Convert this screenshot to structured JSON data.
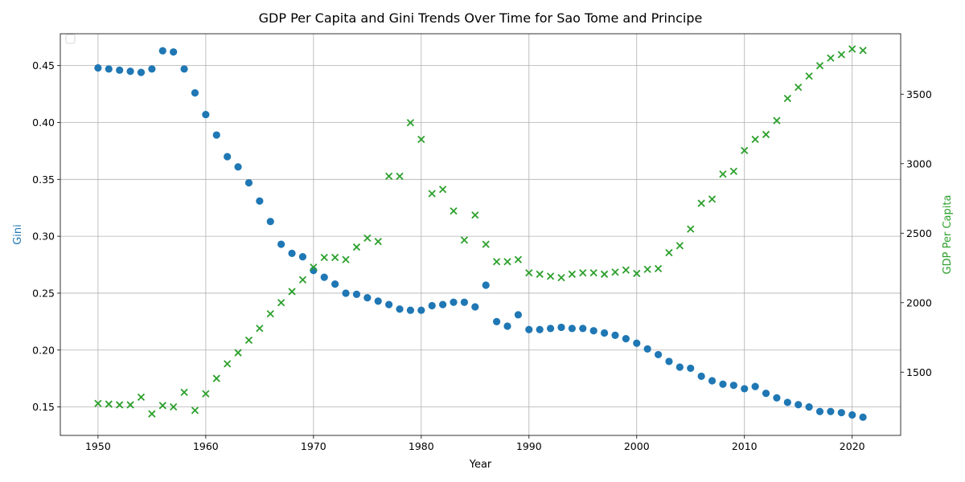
{
  "chart_data": {
    "type": "scatter",
    "title": "GDP Per Capita and Gini Trends Over Time for Sao Tome and Principe",
    "xlabel": "Year",
    "ylabel_left": "Gini",
    "ylabel_right": "GDP Per Capita",
    "xlim": [
      1946.5,
      2024.5
    ],
    "ylim_left": [
      0.125,
      0.478
    ],
    "ylim_right": [
      1045,
      3935
    ],
    "x_ticks": [
      1950,
      1960,
      1970,
      1980,
      1990,
      2000,
      2010,
      2020
    ],
    "y_ticks_left": [
      0.15,
      0.2,
      0.25,
      0.3,
      0.35,
      0.4,
      0.45
    ],
    "y_ticks_right": [
      1500,
      2000,
      2500,
      3000,
      3500
    ],
    "grid": true,
    "legend": "top-left (empty)",
    "series": [
      {
        "axis": "left",
        "marker": "circle",
        "color": "#1f77b4",
        "x": [
          1950,
          1951,
          1952,
          1953,
          1954,
          1955,
          1956,
          1957,
          1958,
          1959,
          1960,
          1961,
          1962,
          1963,
          1964,
          1965,
          1966,
          1967,
          1968,
          1969,
          1970,
          1971,
          1972,
          1973,
          1974,
          1975,
          1976,
          1977,
          1978,
          1979,
          1980,
          1981,
          1982,
          1983,
          1984,
          1985,
          1986,
          1987,
          1988,
          1989,
          1990,
          1991,
          1992,
          1993,
          1994,
          1995,
          1996,
          1997,
          1998,
          1999,
          2000,
          2001,
          2002,
          2003,
          2004,
          2005,
          2006,
          2007,
          2008,
          2009,
          2010,
          2011,
          2012,
          2013,
          2014,
          2015,
          2016,
          2017,
          2018,
          2019,
          2020,
          2021
        ],
        "values": [
          0.448,
          0.447,
          0.446,
          0.445,
          0.444,
          0.447,
          0.463,
          0.462,
          0.447,
          0.426,
          0.407,
          0.389,
          0.37,
          0.361,
          0.347,
          0.331,
          0.313,
          0.293,
          0.285,
          0.282,
          0.27,
          0.264,
          0.258,
          0.25,
          0.249,
          0.246,
          0.243,
          0.24,
          0.236,
          0.235,
          0.235,
          0.239,
          0.24,
          0.242,
          0.242,
          0.238,
          0.257,
          0.225,
          0.221,
          0.231,
          0.218,
          0.218,
          0.219,
          0.22,
          0.219,
          0.219,
          0.217,
          0.215,
          0.213,
          0.21,
          0.206,
          0.201,
          0.196,
          0.19,
          0.185,
          0.184,
          0.177,
          0.173,
          0.17,
          0.169,
          0.166,
          0.168,
          0.162,
          0.158,
          0.154,
          0.152,
          0.15,
          0.146,
          0.146,
          0.145,
          0.143,
          0.141
        ]
      },
      {
        "axis": "right",
        "marker": "x",
        "color": "#2ca02c",
        "x": [
          1950,
          1951,
          1952,
          1953,
          1954,
          1955,
          1956,
          1957,
          1958,
          1959,
          1960,
          1961,
          1962,
          1963,
          1964,
          1965,
          1966,
          1967,
          1968,
          1969,
          1970,
          1971,
          1972,
          1973,
          1974,
          1975,
          1976,
          1977,
          1978,
          1979,
          1980,
          1981,
          1982,
          1983,
          1984,
          1985,
          1986,
          1987,
          1988,
          1989,
          1990,
          1991,
          1992,
          1993,
          1994,
          1995,
          1996,
          1997,
          1998,
          1999,
          2000,
          2001,
          2002,
          2003,
          2004,
          2005,
          2006,
          2007,
          2008,
          2009,
          2010,
          2011,
          2012,
          2013,
          2014,
          2015,
          2016,
          2017,
          2018,
          2019,
          2020,
          2021
        ],
        "values": [
          1275,
          1270,
          1265,
          1265,
          1320,
          1200,
          1260,
          1250,
          1355,
          1225,
          1345,
          1455,
          1560,
          1640,
          1730,
          1815,
          1920,
          2000,
          2080,
          2165,
          2255,
          2325,
          2325,
          2310,
          2400,
          2465,
          2440,
          2910,
          2910,
          3295,
          3175,
          2785,
          2815,
          2660,
          2450,
          2630,
          2420,
          2295,
          2295,
          2310,
          2215,
          2205,
          2190,
          2180,
          2205,
          2215,
          2215,
          2205,
          2220,
          2235,
          2210,
          2240,
          2245,
          2360,
          2410,
          2530,
          2715,
          2745,
          2925,
          2945,
          3095,
          3175,
          3210,
          3310,
          3470,
          3550,
          3630,
          3705,
          3760,
          3785,
          3825,
          3815
        ]
      }
    ]
  }
}
